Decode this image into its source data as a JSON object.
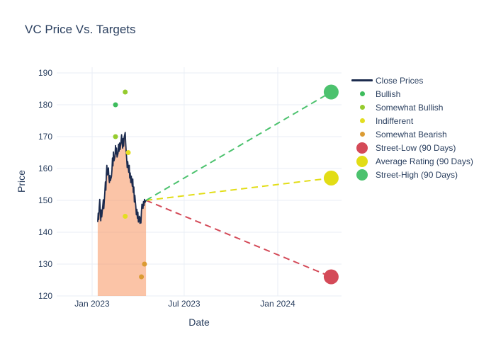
{
  "chart_data": {
    "type": "line",
    "title": "VC Price Vs. Targets",
    "xlabel": "Date",
    "ylabel": "Price",
    "ylim": [
      120,
      190
    ],
    "yticks": [
      120,
      130,
      140,
      150,
      160,
      170,
      180,
      190
    ],
    "xticks": [
      {
        "label": "Jan 2023",
        "day": 0
      },
      {
        "label": "Jul 2023",
        "day": 181
      },
      {
        "label": "Jan 2024",
        "day": 365
      }
    ],
    "grid": true,
    "legend_position": "right",
    "colors": {
      "background": "#ffffff",
      "grid": "#e9eef6",
      "text": "#2a3f5f"
    },
    "close_prices": {
      "name": "Close Prices",
      "color": "#1c2b4e",
      "fill_color": "rgba(247,148,94,0.55)",
      "points": [
        [
          11,
          143.2
        ],
        [
          12,
          146.0
        ],
        [
          13,
          144.0
        ],
        [
          14,
          147.8
        ],
        [
          15,
          150.3
        ],
        [
          16,
          146.8
        ],
        [
          17,
          143.6
        ],
        [
          18,
          147.0
        ],
        [
          19,
          144.8
        ],
        [
          21,
          148.5
        ],
        [
          22,
          150.2
        ],
        [
          23,
          147.4
        ],
        [
          25,
          152.3
        ],
        [
          26,
          155.8
        ],
        [
          27,
          153.2
        ],
        [
          28,
          158.3
        ],
        [
          29,
          161.0
        ],
        [
          30,
          158.0
        ],
        [
          32,
          160.2
        ],
        [
          33,
          157.2
        ],
        [
          34,
          155.6
        ],
        [
          35,
          157.8
        ],
        [
          36,
          156.2
        ],
        [
          38,
          157.5
        ],
        [
          39,
          159.5
        ],
        [
          40,
          163.3
        ],
        [
          41,
          160.8
        ],
        [
          42,
          165.2
        ],
        [
          43,
          162.4
        ],
        [
          45,
          163.8
        ],
        [
          46,
          167.2
        ],
        [
          47,
          164.6
        ],
        [
          48,
          166.4
        ],
        [
          49,
          163.6
        ],
        [
          51,
          164.8
        ],
        [
          52,
          167.6
        ],
        [
          53,
          165.4
        ],
        [
          54,
          168.0
        ],
        [
          55,
          166.0
        ],
        [
          57,
          168.8
        ],
        [
          58,
          170.6
        ],
        [
          59,
          167.8
        ],
        [
          60,
          166.4
        ],
        [
          61,
          169.4
        ],
        [
          62,
          167.0
        ],
        [
          63,
          169.8
        ],
        [
          65,
          171.3
        ],
        [
          66,
          168.0
        ],
        [
          67,
          165.2
        ],
        [
          68,
          163.0
        ],
        [
          69,
          160.3
        ],
        [
          70,
          162.2
        ],
        [
          72,
          158.8
        ],
        [
          73,
          161.0
        ],
        [
          74,
          157.0
        ],
        [
          75,
          158.6
        ],
        [
          76,
          155.6
        ],
        [
          77,
          157.6
        ],
        [
          79,
          154.4
        ],
        [
          80,
          156.7
        ],
        [
          81,
          152.5
        ],
        [
          82,
          154.2
        ],
        [
          83,
          149.5
        ],
        [
          84,
          151.6
        ],
        [
          86,
          148.0
        ],
        [
          87,
          145.5
        ],
        [
          88,
          147.2
        ],
        [
          89,
          144.4
        ],
        [
          90,
          146.3
        ],
        [
          91,
          143.2
        ],
        [
          93,
          145.0
        ],
        [
          94,
          142.8
        ],
        [
          95,
          144.6
        ],
        [
          96,
          142.9
        ],
        [
          97,
          146.5
        ],
        [
          98,
          148.8
        ],
        [
          100,
          147.5
        ],
        [
          101,
          149.6
        ],
        [
          102,
          148.4
        ],
        [
          103,
          150.3
        ],
        [
          104,
          149.4
        ],
        [
          106,
          150.0
        ]
      ]
    },
    "ratings": [
      {
        "name": "Bullish",
        "color": "#3dbc5c",
        "points": [
          [
            46,
            180
          ]
        ]
      },
      {
        "name": "Somewhat Bullish",
        "color": "#95cb2e",
        "points": [
          [
            46,
            170
          ],
          [
            65,
            184
          ]
        ]
      },
      {
        "name": "Indifferent",
        "color": "#e3de21",
        "points": [
          [
            65,
            145
          ],
          [
            71,
            165
          ]
        ]
      },
      {
        "name": "Somewhat Bearish",
        "color": "#db9b33",
        "points": [
          [
            97,
            126
          ],
          [
            103,
            130
          ]
        ]
      }
    ],
    "projection_start": {
      "day": 106,
      "value": 150
    },
    "targets": [
      {
        "name": "Street-Low (90 Days)",
        "color": "#d44a58",
        "value": 126,
        "day": 470
      },
      {
        "name": "Average Rating (90 Days)",
        "color": "#e2dd16",
        "value": 157,
        "day": 470
      },
      {
        "name": "Street-High (90 Days)",
        "color": "#4cc26e",
        "value": 184,
        "day": 470
      }
    ]
  }
}
